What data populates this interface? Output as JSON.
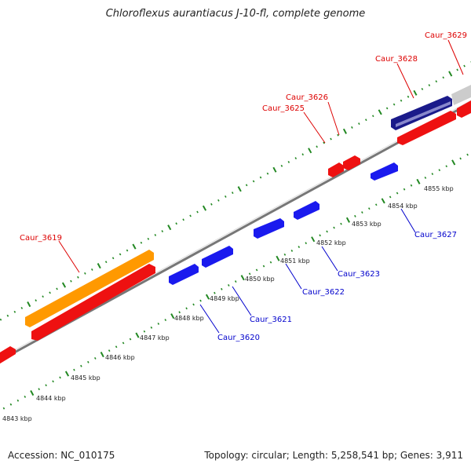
{
  "title": "Chloroflexus aurantiacus J-10-fl, complete genome",
  "footer": {
    "accession": "Accession: NC_010175",
    "summary": "Topology: circular; Length: 5,258,541 bp; Genes: 3,911"
  },
  "colors": {
    "forward_gene": "#ee1111",
    "reverse_gene": "#1a1aee",
    "highlight_gene": "#ff9900",
    "rna_gene": "#1a1a8a",
    "backbone": "#777777",
    "tick": "#228822",
    "label_forward": "#dd0000",
    "label_reverse": "#0000cc"
  },
  "scale_labels": [
    "4843 kbp",
    "4844 kbp",
    "4845 kbp",
    "4846 kbp",
    "4847 kbp",
    "4848 kbp",
    "4849 kbp",
    "4850 kbp",
    "4851 kbp",
    "4852 kbp",
    "4853 kbp",
    "4854 kbp",
    "4855 kbp"
  ],
  "forward_labels": [
    "Caur_3619",
    "Caur_3625",
    "Caur_3626",
    "Caur_3628",
    "Caur_3629"
  ],
  "reverse_labels": [
    "Caur_3620",
    "Caur_3621",
    "Caur_3622",
    "Caur_3623",
    "Caur_3627"
  ]
}
